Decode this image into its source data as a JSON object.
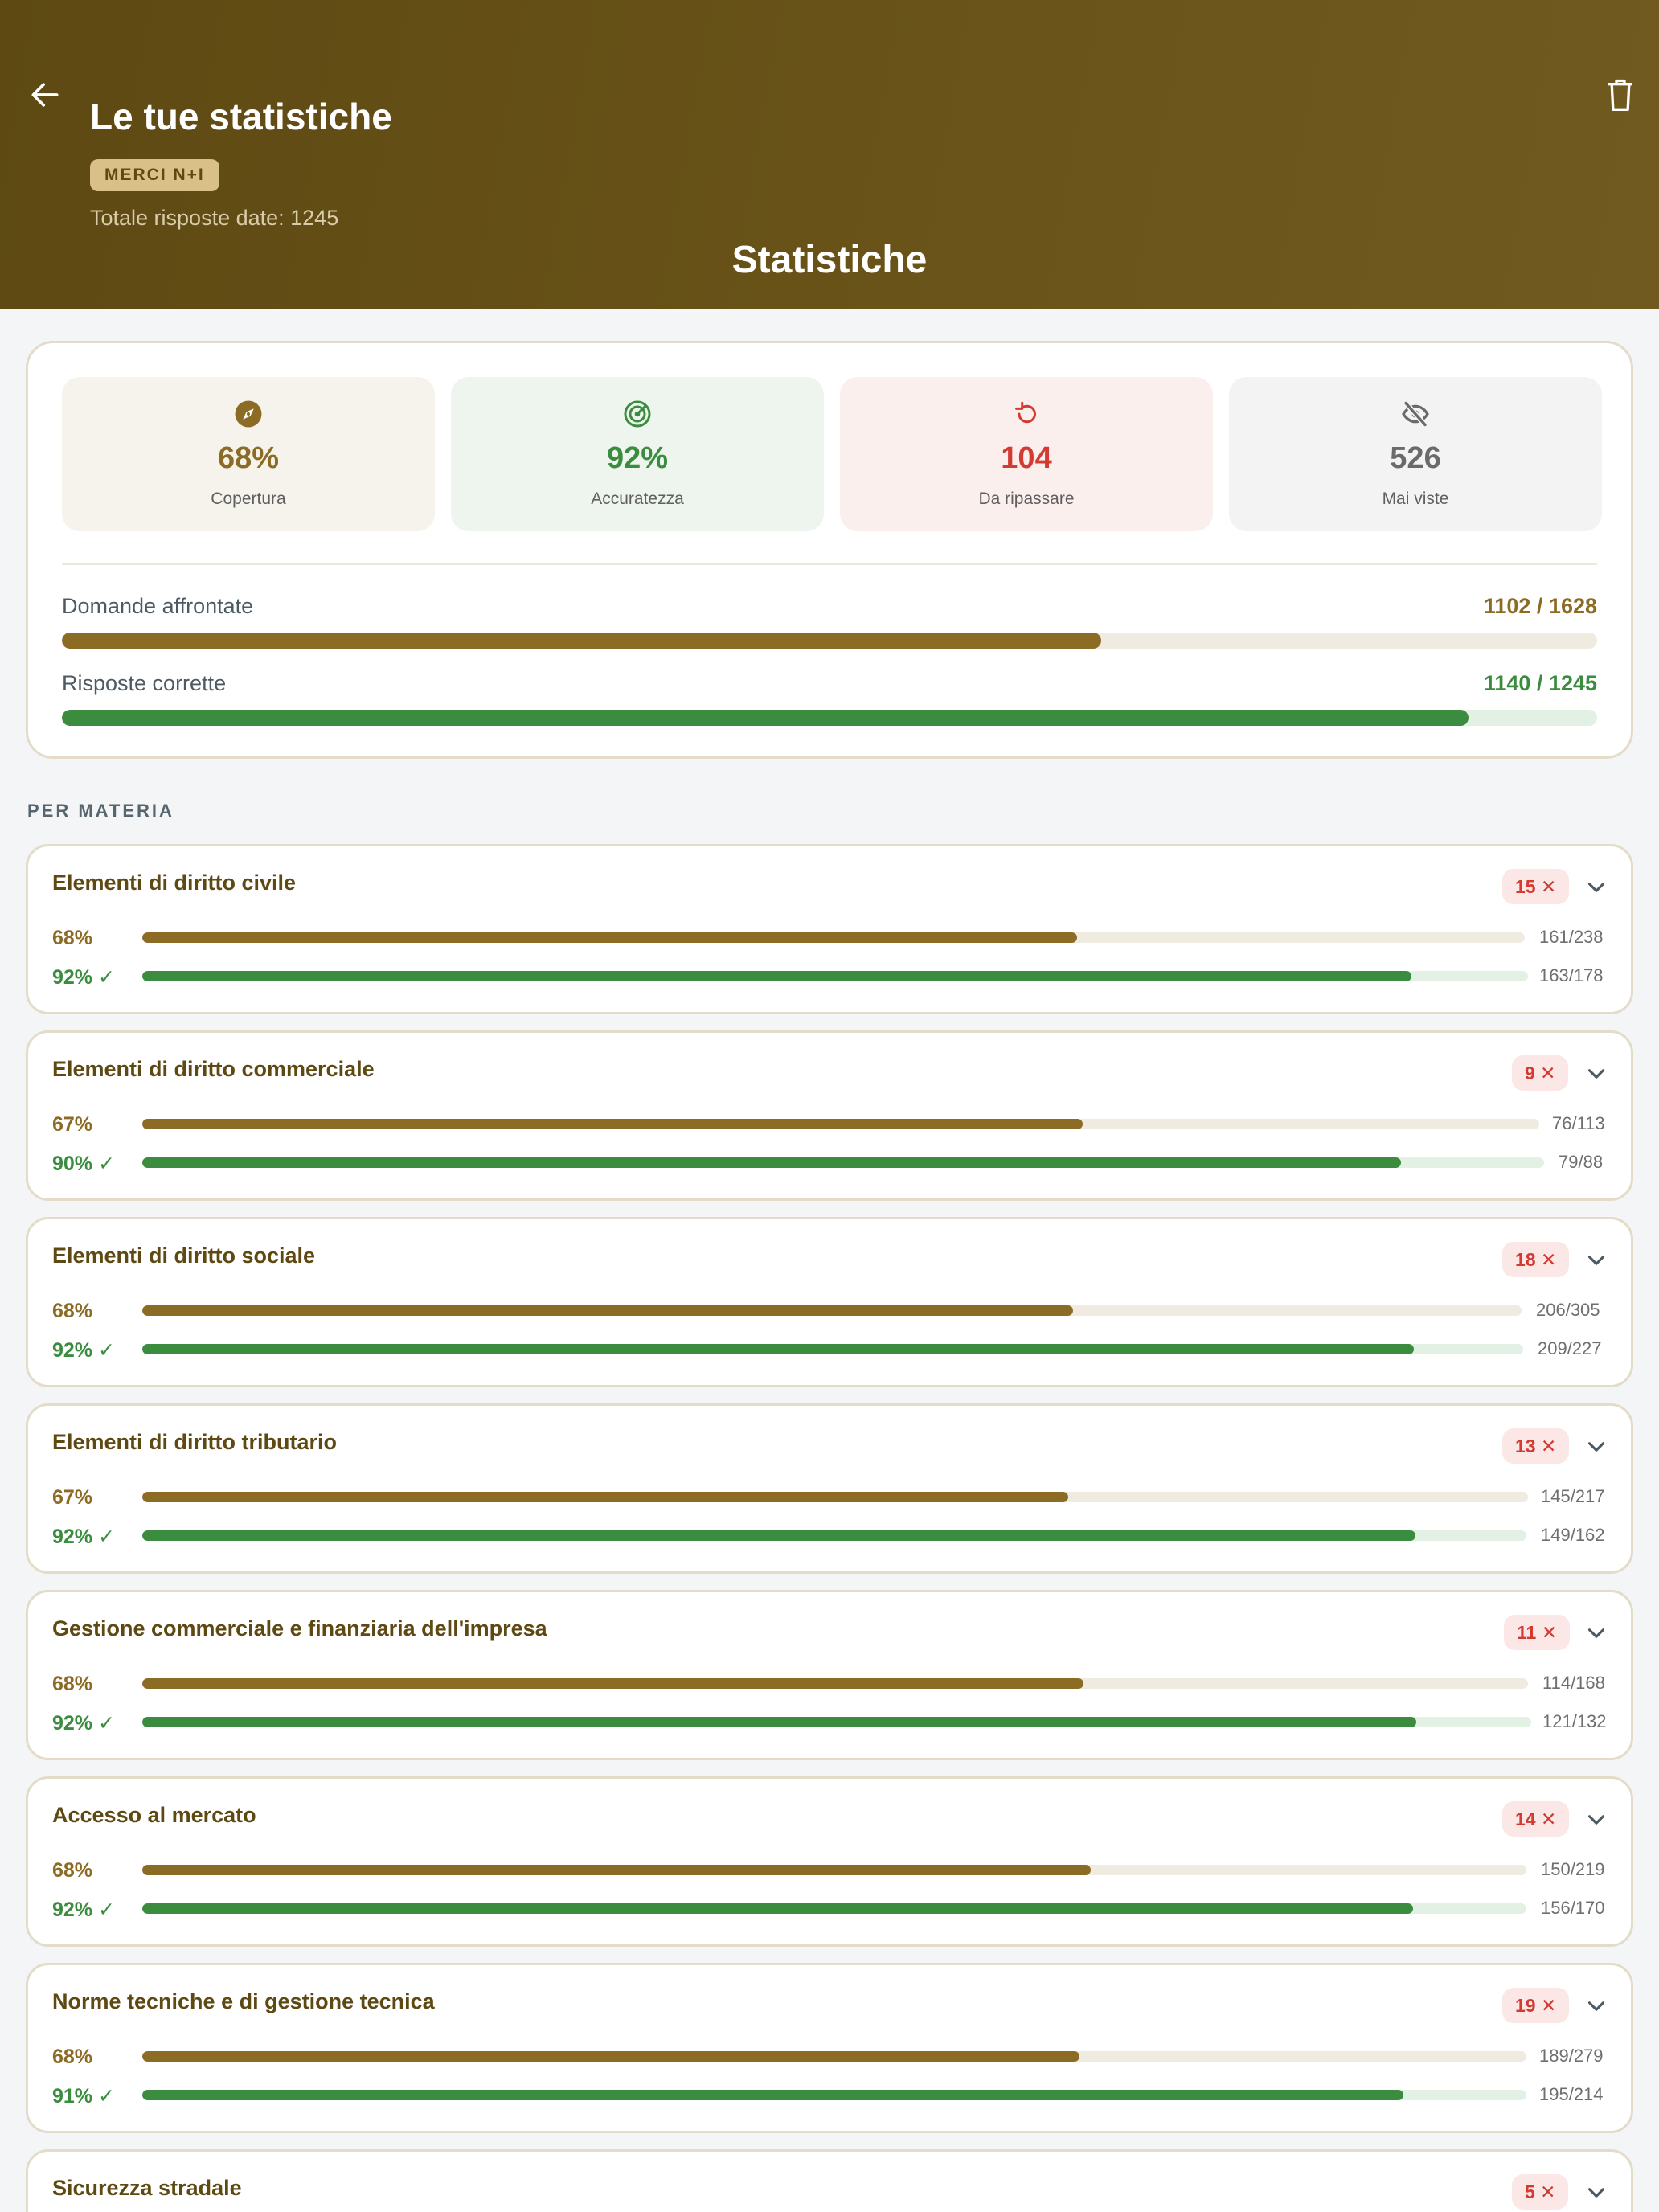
{
  "header": {
    "title": "Le tue statistiche",
    "badge": "MERCI N+I",
    "total_answers": "Totale risposte date: 1245",
    "center_title": "Statistiche",
    "back_icon": "arrow-left-icon",
    "delete_icon": "trash-icon"
  },
  "colors": {
    "header_bg": "#5e4913",
    "coverage": "#8c6c25",
    "accuracy": "#3b8c3f",
    "review": "#d23a32",
    "unseen": "#6a6a6a"
  },
  "summary": {
    "tiles": [
      {
        "icon": "compass-icon",
        "value": "68%",
        "label": "Copertura"
      },
      {
        "icon": "target-icon",
        "value": "92%",
        "label": "Accuratezza"
      },
      {
        "icon": "refresh-icon",
        "value": "104",
        "label": "Da ripassare"
      },
      {
        "icon": "eye-off-icon",
        "value": "526",
        "label": "Mai viste"
      }
    ],
    "faced": {
      "label": "Domande affrontate",
      "value": "1102 / 1628",
      "fraction": 0.677
    },
    "correct": {
      "label": "Risposte corrette",
      "value": "1140 / 1245",
      "fraction": 0.916
    }
  },
  "section_title": "PER MATERIA",
  "subjects": [
    {
      "name": "Elementi di diritto civile",
      "wrong": "15 ✕",
      "coverage_pct": "68%",
      "coverage_count": "161/238",
      "coverage_fraction": 0.676,
      "accuracy_pct": "92% ✓",
      "accuracy_count": "163/178",
      "accuracy_fraction": 0.916
    },
    {
      "name": "Elementi di diritto commerciale",
      "wrong": "9 ✕",
      "coverage_pct": "67%",
      "coverage_count": "76/113",
      "coverage_fraction": 0.673,
      "accuracy_pct": "90% ✓",
      "accuracy_count": "79/88",
      "accuracy_fraction": 0.898
    },
    {
      "name": "Elementi di diritto sociale",
      "wrong": "18 ✕",
      "coverage_pct": "68%",
      "coverage_count": "206/305",
      "coverage_fraction": 0.675,
      "accuracy_pct": "92% ✓",
      "accuracy_count": "209/227",
      "accuracy_fraction": 0.921
    },
    {
      "name": "Elementi di diritto tributario",
      "wrong": "13 ✕",
      "coverage_pct": "67%",
      "coverage_count": "145/217",
      "coverage_fraction": 0.668,
      "accuracy_pct": "92% ✓",
      "accuracy_count": "149/162",
      "accuracy_fraction": 0.92
    },
    {
      "name": "Gestione commerciale e finanziaria dell'impresa",
      "wrong": "11 ✕",
      "coverage_pct": "68%",
      "coverage_count": "114/168",
      "coverage_fraction": 0.679,
      "accuracy_pct": "92% ✓",
      "accuracy_count": "121/132",
      "accuracy_fraction": 0.917
    },
    {
      "name": "Accesso al mercato",
      "wrong": "14 ✕",
      "coverage_pct": "68%",
      "coverage_count": "150/219",
      "coverage_fraction": 0.685,
      "accuracy_pct": "92% ✓",
      "accuracy_count": "156/170",
      "accuracy_fraction": 0.918
    },
    {
      "name": "Norme tecniche e di gestione tecnica",
      "wrong": "19 ✕",
      "coverage_pct": "68%",
      "coverage_count": "189/279",
      "coverage_fraction": 0.677,
      "accuracy_pct": "91% ✓",
      "accuracy_count": "195/214",
      "accuracy_fraction": 0.911
    },
    {
      "name": "Sicurezza stradale",
      "wrong": "5 ✕"
    }
  ]
}
